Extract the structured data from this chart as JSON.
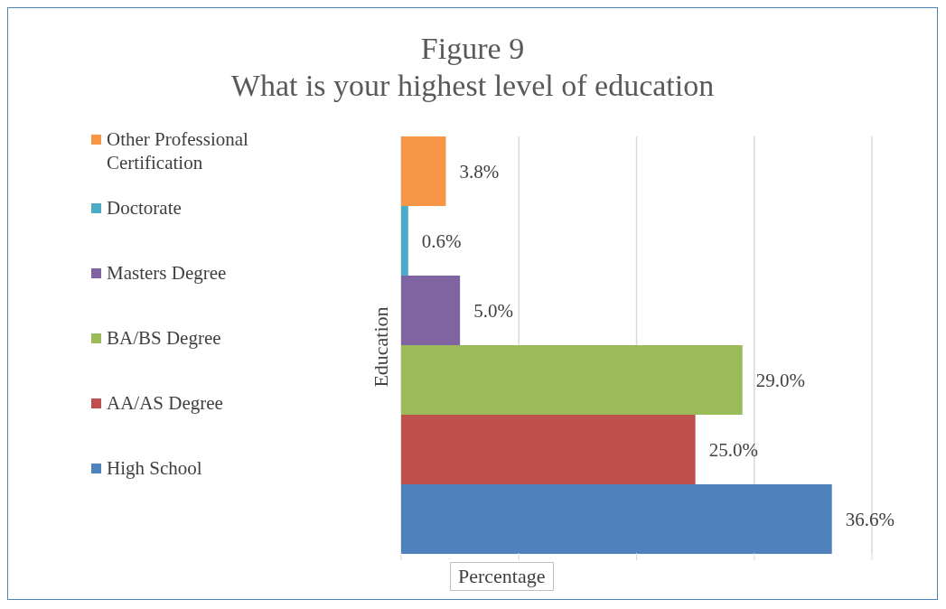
{
  "chart_data": {
    "type": "bar",
    "orientation": "horizontal",
    "title": "Figure 9",
    "subtitle": "What is your highest level of education",
    "xlabel": "Percentage",
    "ylabel": "Education",
    "categories": [
      null
    ],
    "series": [
      {
        "name": "Other Professional Certification",
        "color": "#f79646",
        "values": [
          3.8
        ],
        "value_labels": [
          "3.8%"
        ]
      },
      {
        "name": "Doctorate",
        "color": "#4bacc6",
        "values": [
          0.6
        ],
        "value_labels": [
          "0.6%"
        ]
      },
      {
        "name": "Masters Degree",
        "color": "#8064a2",
        "values": [
          5.0
        ],
        "value_labels": [
          "5.0%"
        ]
      },
      {
        "name": "BA/BS Degree",
        "color": "#9bbb59",
        "values": [
          29.0
        ],
        "value_labels": [
          "29.0%"
        ]
      },
      {
        "name": "AA/AS Degree",
        "color": "#c0504d",
        "values": [
          25.0
        ],
        "value_labels": [
          "25.0%"
        ]
      },
      {
        "name": "High School",
        "color": "#4f81bd",
        "values": [
          36.6
        ],
        "value_labels": [
          "36.6%"
        ]
      }
    ],
    "tick_labels": false,
    "grid": "x",
    "legend": "left"
  }
}
